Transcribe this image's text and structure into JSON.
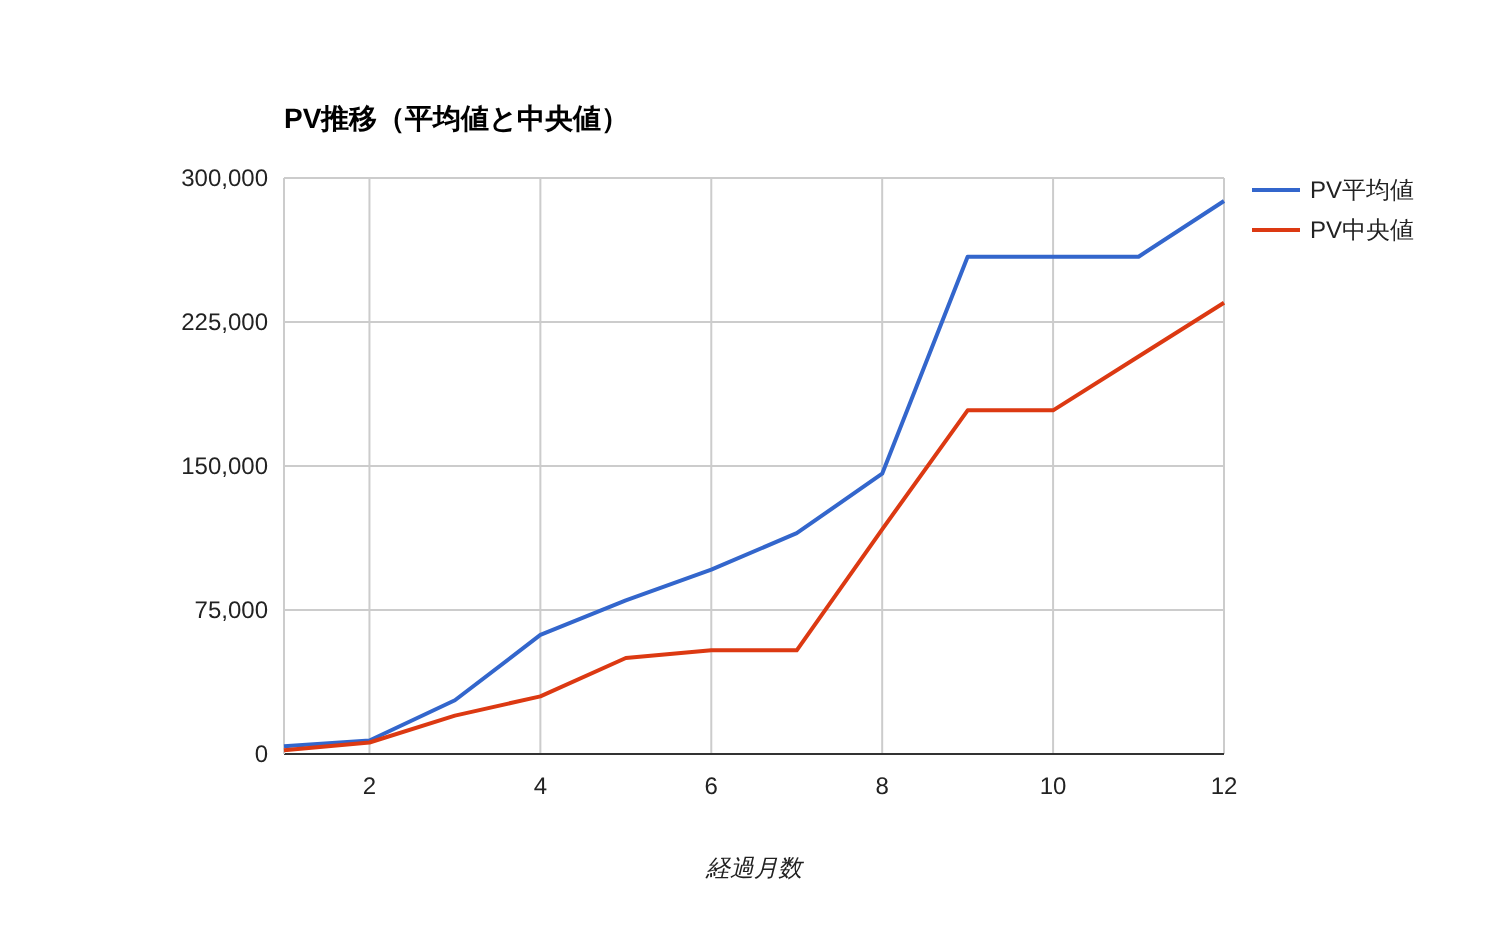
{
  "chart_data": {
    "type": "line",
    "title": "PV推移（平均値と中央値）",
    "xlabel": "経過月数",
    "x": [
      1,
      2,
      3,
      4,
      5,
      6,
      7,
      8,
      9,
      10,
      11,
      12
    ],
    "series": [
      {
        "name": "PV平均値",
        "color": "#3366cc",
        "values": [
          4000,
          7000,
          28000,
          62000,
          80000,
          96000,
          115000,
          146000,
          259000,
          259000,
          259000,
          288000
        ]
      },
      {
        "name": "PV中央値",
        "color": "#dc3912",
        "values": [
          2000,
          6000,
          20000,
          30000,
          50000,
          54000,
          54000,
          117000,
          179000,
          179000,
          207000,
          235000
        ]
      }
    ],
    "xlim": [
      1,
      12
    ],
    "xticks": [
      2,
      4,
      6,
      8,
      10,
      12
    ],
    "ylim": [
      0,
      300000
    ],
    "yticks": [
      {
        "value": 0,
        "label": "0"
      },
      {
        "value": 75000,
        "label": "75,000"
      },
      {
        "value": 150000,
        "label": "150,000"
      },
      {
        "value": 225000,
        "label": "225,000"
      },
      {
        "value": 300000,
        "label": "300,000"
      }
    ],
    "grid": true,
    "legend": "right",
    "marker": "none",
    "line_style": "solid"
  }
}
